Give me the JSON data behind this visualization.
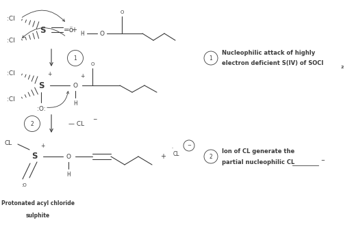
{
  "bg_color": "#ffffff",
  "text_color": "#3a3a3a",
  "fig_width": 5.17,
  "fig_height": 3.57,
  "dpi": 100,
  "step1_note_line1": "Nucleophilic attack of highly",
  "step1_note_line2": "electron deficient S(IV) of SOCl",
  "step1_note_sub": "2",
  "step2_note_line1": "Ion of CL generate the",
  "step2_note_line2": "partial nucleophilic CL",
  "bottom_line1": "Protonated acyl chloride",
  "bottom_line2": "sulphite"
}
